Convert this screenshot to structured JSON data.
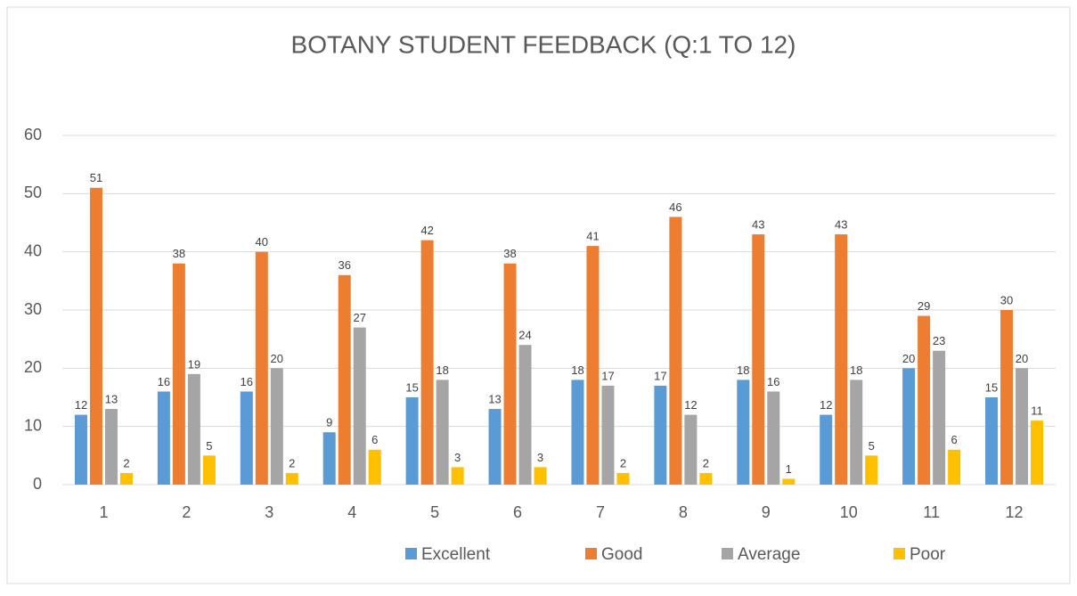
{
  "chart_data": {
    "type": "bar",
    "title": "BOTANY STUDENT FEEDBACK (Q:1 TO 12)",
    "categories": [
      "1",
      "2",
      "3",
      "4",
      "5",
      "6",
      "7",
      "8",
      "9",
      "10",
      "11",
      "12"
    ],
    "series": [
      {
        "name": "Excellent",
        "color": "#5b9bd5",
        "values": [
          12,
          16,
          16,
          9,
          15,
          13,
          18,
          17,
          18,
          12,
          20,
          15
        ]
      },
      {
        "name": "Good",
        "color": "#ed7d31",
        "values": [
          51,
          38,
          40,
          36,
          42,
          38,
          41,
          46,
          43,
          43,
          29,
          30
        ]
      },
      {
        "name": "Average",
        "color": "#a5a5a5",
        "values": [
          13,
          19,
          20,
          27,
          18,
          24,
          17,
          12,
          16,
          18,
          23,
          20
        ]
      },
      {
        "name": "Poor",
        "color": "#ffc000",
        "values": [
          2,
          5,
          2,
          6,
          3,
          3,
          2,
          2,
          1,
          5,
          6,
          11
        ]
      }
    ],
    "ylim": [
      0,
      60
    ],
    "yticks": [
      0,
      10,
      20,
      30,
      40,
      50,
      60
    ],
    "grid": true,
    "legend": "bottom"
  }
}
